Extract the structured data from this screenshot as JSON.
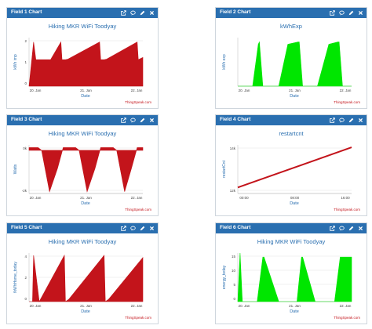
{
  "icons": [
    "external-link-icon",
    "comment-icon",
    "pencil-icon",
    "close-icon"
  ],
  "colors": {
    "header": "#2a6fb0",
    "title": "#2a6fb0",
    "red": "#c3141b",
    "green": "#00e600"
  },
  "watermark": "ThingSpeak.com",
  "panels": [
    {
      "header": "Field 1 Chart",
      "chart_data": {
        "type": "area",
        "title": "Hiking MKR WiFi Toodyay",
        "ylabel": "kWh imp",
        "xlabel": "Date",
        "xticks": [
          "20. Jan",
          "21. Jan",
          "22. Jan"
        ],
        "yticks": [
          "0",
          "1",
          "2"
        ],
        "ylim": [
          0,
          2.2
        ],
        "series": [
          {
            "color": "#c3141b",
            "x": [
              0,
              0.04,
              0.06,
              0.19,
              0.28,
              0.29,
              0.32,
              0.34,
              0.62,
              0.63,
              0.66,
              0.68,
              0.95,
              0.96,
              1
            ],
            "y": [
              0,
              2.0,
              1.2,
              1.2,
              2.0,
              1.2,
              1.2,
              1.22,
              2.0,
              1.2,
              1.2,
              1.22,
              2.0,
              1.2,
              1.3
            ]
          }
        ]
      }
    },
    {
      "header": "Field 2 Chart",
      "chart_data": {
        "type": "area",
        "title": "kWhExp",
        "ylabel": "kWh exp",
        "xlabel": "Date",
        "xticks": [
          "20. Jan",
          "21. Jan",
          "22. Jan"
        ],
        "yticks": [],
        "ylim": [
          0,
          1.1
        ],
        "series": [
          {
            "color": "#00e600",
            "x": [
              0,
              0.02,
              0.03,
              0.05,
              0.13,
              0.18,
              0.19,
              0.22,
              0.3,
              0.36,
              0.44,
              0.53,
              0.54,
              0.57,
              0.66,
              0.7,
              0.8,
              0.88,
              0.89,
              0.92,
              1,
              1
            ],
            "y": [
              0,
              0,
              0,
              0,
              0,
              0.95,
              1,
              0,
              0,
              0,
              0.95,
              1,
              1,
              0,
              0,
              0,
              0.95,
              1,
              1,
              0,
              0,
              0
            ]
          }
        ]
      }
    },
    {
      "header": "Field 3 Chart",
      "chart_data": {
        "type": "area",
        "title": "Hiking MKR WiFi Toodyay",
        "ylabel": "Watts",
        "xlabel": "Date",
        "xticks": [
          "20. Jan",
          "21. Jan",
          "22. Jan"
        ],
        "yticks": [
          "-2k",
          "0k"
        ],
        "ylim": [
          -2400,
          300
        ],
        "series": [
          {
            "color": "#c3141b",
            "x": [
              0,
              0.08,
              0.11,
              0.18,
              0.25,
              0.3,
              0.33,
              0.41,
              0.44,
              0.51,
              0.58,
              0.63,
              0.66,
              0.74,
              0.77,
              0.84,
              0.9,
              0.95,
              1
            ],
            "y": [
              150,
              150,
              0,
              -2300,
              -1000,
              150,
              150,
              150,
              0,
              -2300,
              -1000,
              150,
              150,
              150,
              0,
              -2300,
              -1000,
              150,
              150
            ]
          }
        ]
      }
    },
    {
      "header": "Field 4 Chart",
      "chart_data": {
        "type": "line",
        "title": "restartcnt",
        "ylabel": "restartCnt",
        "xlabel": "Date",
        "xticks": [
          "00:00",
          "08:00",
          "16:00"
        ],
        "yticks": [
          "12k",
          "14k"
        ],
        "ylim": [
          11000,
          15000
        ],
        "series": [
          {
            "color": "#c3141b",
            "x": [
              0,
              1
            ],
            "y": [
              11500,
              14800
            ]
          }
        ]
      }
    },
    {
      "header": "Field 5 Chart",
      "chart_data": {
        "type": "area",
        "title": "Hiking MKR WiFi Toodyay",
        "ylabel": "fkWhHome_today",
        "xlabel": "Date",
        "xticks": [
          "20. Jan",
          "21. Jan",
          "22. Jan"
        ],
        "yticks": [
          "0",
          "2",
          "4"
        ],
        "ylim": [
          0,
          4.2
        ],
        "series": [
          {
            "color": "#c3141b",
            "x": [
              0,
              0.03,
              0.04,
              0.09,
              0.31,
              0.32,
              0.35,
              0.66,
              0.67,
              0.7,
              1
            ],
            "y": [
              0,
              0,
              4.0,
              0,
              4.0,
              0,
              0.2,
              4.0,
              0,
              0.2,
              3.8
            ]
          }
        ]
      }
    },
    {
      "header": "Field 6 Chart",
      "chart_data": {
        "type": "area",
        "title": "Hiking MKR WiFi Toodyay",
        "ylabel": "energy_today",
        "xlabel": "Date",
        "xticks": [
          "20. Jan",
          "21. Jan",
          "22. Jan"
        ],
        "yticks": [
          "0",
          "5",
          "10",
          "15"
        ],
        "ylim": [
          0,
          18
        ],
        "series": [
          {
            "color": "#00e600",
            "x": [
              0,
              0.02,
              0.04,
              0.05,
              0.08,
              0.17,
              0.22,
              0.23,
              0.36,
              0.4,
              0.52,
              0.56,
              0.57,
              0.68,
              0.74,
              0.85,
              0.9,
              0.91,
              1
            ],
            "y": [
              0,
              18,
              0,
              0,
              0,
              0,
              16.5,
              16.5,
              0,
              0,
              0,
              16.5,
              16.5,
              0,
              0,
              0,
              16.5,
              16.5,
              16.5
            ]
          }
        ]
      }
    }
  ]
}
